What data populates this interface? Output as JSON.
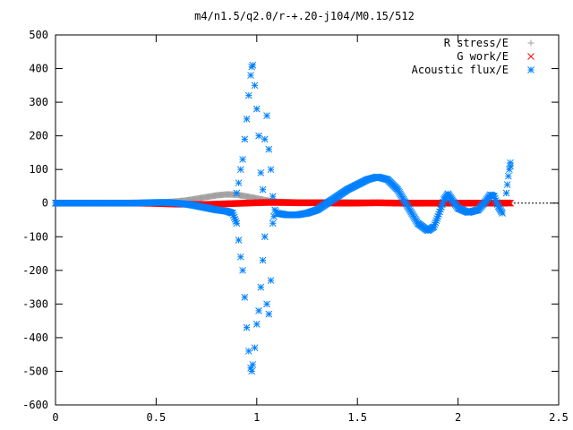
{
  "chart_data": {
    "type": "scatter",
    "title": "m4/n1.5/q2.0/r-+.20-j104/M0.15/512",
    "xlabel": "",
    "ylabel": "",
    "xlim": [
      0,
      2.5
    ],
    "ylim": [
      -600,
      500
    ],
    "x_ticks": [
      "0",
      "0.5",
      "1",
      "1.5",
      "2",
      "2.5"
    ],
    "y_ticks": [
      "500",
      "400",
      "300",
      "200",
      "100",
      "0",
      "-100",
      "-200",
      "-300",
      "-400",
      "-500",
      "-600"
    ],
    "grid": false,
    "legend_position": "top-right",
    "series": [
      {
        "name": "R stress/E",
        "marker": "plus",
        "color": "#a0a0a0",
        "points": [
          [
            0.0,
            0
          ],
          [
            0.1,
            0
          ],
          [
            0.2,
            0
          ],
          [
            0.3,
            0
          ],
          [
            0.4,
            1
          ],
          [
            0.5,
            2
          ],
          [
            0.55,
            3
          ],
          [
            0.6,
            5
          ],
          [
            0.65,
            8
          ],
          [
            0.7,
            13
          ],
          [
            0.75,
            18
          ],
          [
            0.8,
            23
          ],
          [
            0.85,
            26
          ],
          [
            0.9,
            25
          ],
          [
            0.95,
            20
          ],
          [
            1.0,
            14
          ],
          [
            1.05,
            8
          ],
          [
            1.1,
            4
          ],
          [
            1.2,
            2
          ],
          [
            1.3,
            2
          ],
          [
            1.4,
            3
          ],
          [
            1.5,
            2
          ],
          [
            1.6,
            1
          ],
          [
            1.7,
            0
          ],
          [
            1.8,
            -1
          ],
          [
            1.9,
            0
          ],
          [
            2.0,
            0
          ],
          [
            2.1,
            0
          ],
          [
            2.2,
            1
          ],
          [
            2.26,
            1
          ]
        ]
      },
      {
        "name": "G work/E",
        "marker": "cross",
        "color": "#ff0000",
        "points": [
          [
            0.0,
            0
          ],
          [
            0.1,
            0
          ],
          [
            0.2,
            0
          ],
          [
            0.3,
            0
          ],
          [
            0.4,
            0
          ],
          [
            0.5,
            -1
          ],
          [
            0.55,
            -2
          ],
          [
            0.6,
            -3
          ],
          [
            0.65,
            -3
          ],
          [
            0.7,
            -4
          ],
          [
            0.75,
            -4
          ],
          [
            0.8,
            -3
          ],
          [
            0.85,
            -2
          ],
          [
            0.9,
            -1
          ],
          [
            0.95,
            0
          ],
          [
            1.0,
            1
          ],
          [
            1.05,
            2
          ],
          [
            1.1,
            2
          ],
          [
            1.2,
            1
          ],
          [
            1.3,
            1
          ],
          [
            1.4,
            0
          ],
          [
            1.5,
            0
          ],
          [
            1.6,
            1
          ],
          [
            1.7,
            0
          ],
          [
            1.8,
            0
          ],
          [
            1.9,
            0
          ],
          [
            2.0,
            0
          ],
          [
            2.1,
            0
          ],
          [
            2.2,
            0
          ],
          [
            2.26,
            0
          ]
        ]
      },
      {
        "name": "Acoustic flux/E",
        "marker": "star",
        "color": "#0080ff",
        "points": [
          [
            0.0,
            0
          ],
          [
            0.05,
            0
          ],
          [
            0.1,
            0
          ],
          [
            0.15,
            0
          ],
          [
            0.2,
            0
          ],
          [
            0.25,
            0
          ],
          [
            0.3,
            0
          ],
          [
            0.35,
            0
          ],
          [
            0.4,
            0
          ],
          [
            0.45,
            1
          ],
          [
            0.5,
            2
          ],
          [
            0.55,
            2
          ],
          [
            0.6,
            0
          ],
          [
            0.65,
            -3
          ],
          [
            0.7,
            -8
          ],
          [
            0.75,
            -14
          ],
          [
            0.8,
            -20
          ],
          [
            0.85,
            -24
          ],
          [
            0.88,
            -30
          ],
          [
            0.9,
            -60
          ],
          [
            0.91,
            -110
          ],
          [
            0.92,
            -160
          ],
          [
            0.93,
            -200
          ],
          [
            0.94,
            -280
          ],
          [
            0.95,
            -370
          ],
          [
            0.96,
            -440
          ],
          [
            0.97,
            -490
          ],
          [
            0.975,
            -500
          ],
          [
            0.98,
            -480
          ],
          [
            0.99,
            -430
          ],
          [
            0.9,
            30
          ],
          [
            0.91,
            60
          ],
          [
            0.92,
            100
          ],
          [
            0.93,
            130
          ],
          [
            0.94,
            190
          ],
          [
            0.95,
            250
          ],
          [
            0.96,
            320
          ],
          [
            0.97,
            380
          ],
          [
            0.975,
            405
          ],
          [
            0.98,
            410
          ],
          [
            0.99,
            350
          ],
          [
            1.0,
            280
          ],
          [
            1.0,
            -360
          ],
          [
            1.01,
            200
          ],
          [
            1.01,
            -320
          ],
          [
            1.02,
            90
          ],
          [
            1.02,
            -250
          ],
          [
            1.03,
            40
          ],
          [
            1.03,
            -170
          ],
          [
            1.04,
            190
          ],
          [
            1.04,
            -100
          ],
          [
            1.05,
            260
          ],
          [
            1.05,
            -300
          ],
          [
            1.06,
            160
          ],
          [
            1.06,
            -330
          ],
          [
            1.07,
            100
          ],
          [
            1.07,
            -230
          ],
          [
            1.08,
            20
          ],
          [
            1.08,
            -60
          ],
          [
            1.09,
            -20
          ],
          [
            1.1,
            -30
          ],
          [
            1.15,
            -35
          ],
          [
            1.2,
            -35
          ],
          [
            1.25,
            -30
          ],
          [
            1.3,
            -20
          ],
          [
            1.35,
            0
          ],
          [
            1.4,
            20
          ],
          [
            1.45,
            40
          ],
          [
            1.5,
            55
          ],
          [
            1.55,
            70
          ],
          [
            1.6,
            78
          ],
          [
            1.65,
            70
          ],
          [
            1.7,
            40
          ],
          [
            1.75,
            -10
          ],
          [
            1.8,
            -60
          ],
          [
            1.85,
            -82
          ],
          [
            1.88,
            -70
          ],
          [
            1.9,
            -40
          ],
          [
            1.93,
            10
          ],
          [
            1.95,
            28
          ],
          [
            1.97,
            10
          ],
          [
            2.0,
            -15
          ],
          [
            2.05,
            -28
          ],
          [
            2.1,
            -20
          ],
          [
            2.13,
            0
          ],
          [
            2.16,
            25
          ],
          [
            2.18,
            20
          ],
          [
            2.2,
            -10
          ],
          [
            2.22,
            -30
          ],
          [
            2.24,
            30
          ],
          [
            2.25,
            80
          ],
          [
            2.26,
            120
          ],
          [
            2.26,
            110
          ],
          [
            2.255,
            100
          ]
        ]
      }
    ]
  }
}
